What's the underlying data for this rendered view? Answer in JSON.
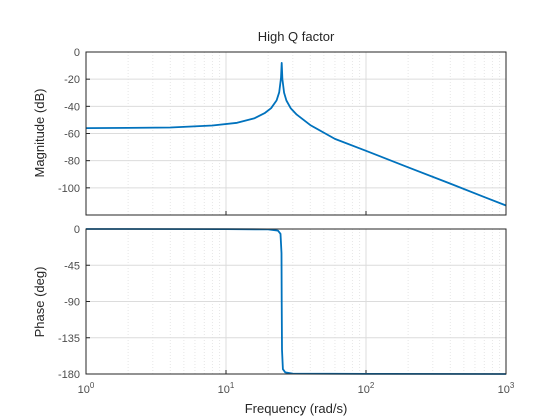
{
  "chart_data": {
    "type": "line",
    "title": "High Q factor",
    "xlabel": "Frequency  (rad/s)",
    "x_scale": "log",
    "xlim": [
      1,
      1000
    ],
    "x_ticks": [
      {
        "base": "10",
        "exp": "0"
      },
      {
        "base": "10",
        "exp": "1"
      },
      {
        "base": "10",
        "exp": "2"
      },
      {
        "base": "10",
        "exp": "3"
      }
    ],
    "grid": true,
    "line_color": "#0072bd",
    "panels": [
      {
        "id": "magnitude",
        "ylabel": "Magnitude (dB)",
        "ylim": [
          -120,
          0
        ],
        "y_ticks": [
          "0",
          "-20",
          "-40",
          "-60",
          "-80",
          "-100"
        ],
        "y_tick_values": [
          0,
          -20,
          -40,
          -60,
          -80,
          -100
        ],
        "series": [
          {
            "x": [
              1,
              2,
              4,
              8,
              12,
              16,
              19,
              21,
              23,
              24,
              24.7,
              25,
              25.3,
              26,
              27,
              29,
              32,
              40,
              60,
              100,
              200,
              400,
              700,
              1000
            ],
            "y": [
              -56,
              -55.9,
              -55.6,
              -54.1,
              -52.1,
              -48.7,
              -44.8,
              -41.4,
              -35.6,
              -29.7,
              -19,
              -8,
              -20,
              -30,
              -35.7,
              -41.4,
              -46.1,
              -53.8,
              -64,
              -72.7,
              -84.9,
              -96.9,
              -106.8,
              -113
            ]
          }
        ]
      },
      {
        "id": "phase",
        "ylabel": "Phase (deg)",
        "ylim": [
          -180,
          0
        ],
        "y_ticks": [
          "0",
          "-45",
          "-90",
          "-135",
          "-180"
        ],
        "y_tick_values": [
          0,
          -45,
          -90,
          -135,
          -180
        ],
        "series": [
          {
            "x": [
              1,
              10,
              20,
              23.5,
              24.5,
              24.9,
              25,
              25.1,
              25.5,
              26.5,
              30,
              100,
              1000
            ],
            "y": [
              0,
              -0.1,
              -0.5,
              -2,
              -6,
              -30,
              -90,
              -150,
              -174,
              -178,
              -179.5,
              -179.9,
              -180
            ]
          }
        ]
      }
    ]
  }
}
